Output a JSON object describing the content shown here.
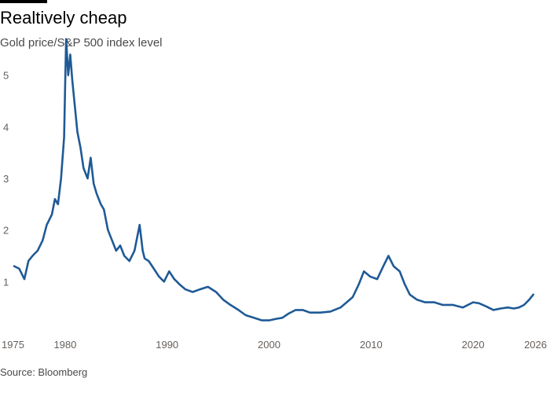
{
  "header": {
    "title": "Realtively cheap",
    "subtitle": "Gold price/S&P 500 index level"
  },
  "footer": {
    "source": "Source: Bloomberg"
  },
  "chart_data": {
    "type": "line",
    "title": "Realtively cheap",
    "subtitle": "Gold price/S&P 500 index level",
    "xlabel": "",
    "ylabel": "",
    "xlim": [
      1975,
      2026
    ],
    "ylim": [
      0,
      6
    ],
    "x_ticks": [
      1975,
      1980,
      1990,
      2000,
      2010,
      2020,
      2026
    ],
    "y_ticks": [
      1,
      2,
      3,
      4,
      5
    ],
    "grid": false,
    "legend": "none",
    "color": "#1f5a96",
    "series": [
      {
        "name": "",
        "x": [
          1975.0,
          1975.5,
          1976.0,
          1976.4,
          1976.8,
          1977.3,
          1977.8,
          1978.2,
          1978.7,
          1979.0,
          1979.3,
          1979.6,
          1979.9,
          1980.0,
          1980.1,
          1980.3,
          1980.5,
          1980.7,
          1980.9,
          1981.2,
          1981.5,
          1981.8,
          1982.2,
          1982.5,
          1982.8,
          1983.1,
          1983.5,
          1983.8,
          1984.2,
          1984.6,
          1985.0,
          1985.4,
          1985.8,
          1986.3,
          1986.8,
          1987.3,
          1987.6,
          1987.8,
          1988.2,
          1988.7,
          1989.2,
          1989.7,
          1990.2,
          1990.7,
          1991.2,
          1991.8,
          1992.5,
          1993.2,
          1994.0,
          1994.8,
          1995.5,
          1996.2,
          1997.0,
          1997.7,
          1998.5,
          1999.3,
          2000.0,
          2000.7,
          2001.3,
          2001.9,
          2002.6,
          2003.3,
          2004.0,
          2005.0,
          2006.0,
          2007.0,
          2007.6,
          2008.2,
          2008.8,
          2009.3,
          2009.9,
          2010.6,
          2011.2,
          2011.7,
          2012.2,
          2012.8,
          2013.3,
          2013.8,
          2014.5,
          2015.3,
          2016.2,
          2017.0,
          2018.0,
          2019.0,
          2020.0,
          2020.6,
          2021.3,
          2022.0,
          2022.7,
          2023.4,
          2024.0,
          2024.5,
          2025.0,
          2025.5,
          2025.9
        ],
        "values": [
          1.3,
          1.25,
          1.05,
          1.4,
          1.5,
          1.6,
          1.8,
          2.1,
          2.3,
          2.6,
          2.5,
          3.0,
          3.8,
          4.8,
          5.7,
          5.0,
          5.4,
          4.9,
          4.5,
          3.9,
          3.6,
          3.2,
          3.0,
          3.4,
          2.9,
          2.7,
          2.5,
          2.4,
          2.0,
          1.8,
          1.6,
          1.7,
          1.5,
          1.4,
          1.6,
          2.1,
          1.6,
          1.45,
          1.4,
          1.25,
          1.1,
          1.0,
          1.2,
          1.05,
          0.95,
          0.85,
          0.8,
          0.85,
          0.9,
          0.8,
          0.65,
          0.55,
          0.45,
          0.35,
          0.3,
          0.25,
          0.25,
          0.28,
          0.3,
          0.38,
          0.45,
          0.45,
          0.4,
          0.4,
          0.42,
          0.5,
          0.6,
          0.7,
          0.95,
          1.2,
          1.1,
          1.05,
          1.3,
          1.5,
          1.3,
          1.2,
          0.95,
          0.75,
          0.65,
          0.6,
          0.6,
          0.55,
          0.55,
          0.5,
          0.6,
          0.58,
          0.52,
          0.45,
          0.48,
          0.5,
          0.48,
          0.5,
          0.55,
          0.65,
          0.75
        ]
      }
    ]
  }
}
